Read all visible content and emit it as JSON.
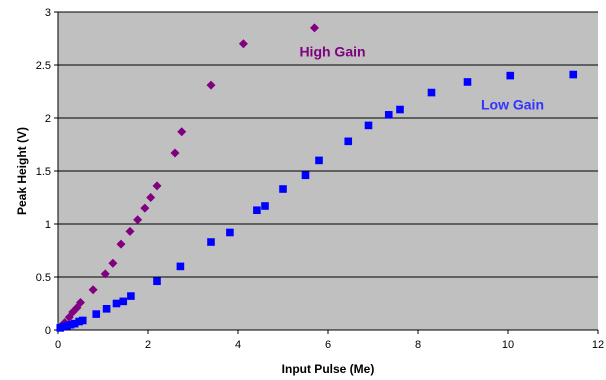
{
  "chart_data": {
    "type": "scatter",
    "title": "",
    "xlabel": "Input Pulse (Me)",
    "ylabel": "Peak Height (V)",
    "xlim": [
      0,
      12
    ],
    "ylim": [
      0,
      3
    ],
    "x_ticks": [
      "0",
      "2",
      "4",
      "6",
      "8",
      "10",
      "12"
    ],
    "y_ticks": [
      "0",
      "0.5",
      "1",
      "1.5",
      "2",
      "2.5",
      "3"
    ],
    "grid": "horizontal",
    "plot_background": "#c0c0c0",
    "series": [
      {
        "name": "High Gain",
        "marker": "diamond",
        "color": "#800080",
        "points": [
          [
            0.08,
            0.04
          ],
          [
            0.15,
            0.07
          ],
          [
            0.25,
            0.12
          ],
          [
            0.33,
            0.17
          ],
          [
            0.42,
            0.21
          ],
          [
            0.5,
            0.26
          ],
          [
            0.78,
            0.38
          ],
          [
            1.05,
            0.53
          ],
          [
            1.22,
            0.63
          ],
          [
            1.4,
            0.81
          ],
          [
            1.6,
            0.93
          ],
          [
            1.77,
            1.04
          ],
          [
            1.93,
            1.15
          ],
          [
            2.06,
            1.25
          ],
          [
            2.2,
            1.36
          ],
          [
            2.6,
            1.67
          ],
          [
            2.75,
            1.87
          ],
          [
            3.4,
            2.31
          ],
          [
            4.12,
            2.7
          ],
          [
            5.7,
            2.85
          ]
        ]
      },
      {
        "name": "Low Gain",
        "marker": "square",
        "color": "#0000ff",
        "points": [
          [
            0.05,
            0.02
          ],
          [
            0.12,
            0.03
          ],
          [
            0.2,
            0.04
          ],
          [
            0.28,
            0.05
          ],
          [
            0.37,
            0.06
          ],
          [
            0.47,
            0.08
          ],
          [
            0.55,
            0.09
          ],
          [
            0.85,
            0.15
          ],
          [
            1.08,
            0.2
          ],
          [
            1.3,
            0.25
          ],
          [
            1.45,
            0.27
          ],
          [
            1.62,
            0.32
          ],
          [
            2.2,
            0.46
          ],
          [
            2.72,
            0.6
          ],
          [
            3.4,
            0.83
          ],
          [
            3.82,
            0.92
          ],
          [
            4.42,
            1.13
          ],
          [
            4.6,
            1.17
          ],
          [
            5.0,
            1.33
          ],
          [
            5.5,
            1.46
          ],
          [
            5.8,
            1.6
          ],
          [
            6.45,
            1.78
          ],
          [
            6.9,
            1.93
          ],
          [
            7.35,
            2.03
          ],
          [
            7.6,
            2.08
          ],
          [
            8.3,
            2.24
          ],
          [
            9.1,
            2.34
          ],
          [
            10.05,
            2.4
          ],
          [
            11.45,
            2.41
          ]
        ]
      }
    ],
    "annotations": [
      {
        "text": "High Gain",
        "x": 6.1,
        "y": 2.58,
        "color": "#800080"
      },
      {
        "text": "Low Gain",
        "x": 10.1,
        "y": 2.08,
        "color": "#3333ff"
      }
    ]
  }
}
